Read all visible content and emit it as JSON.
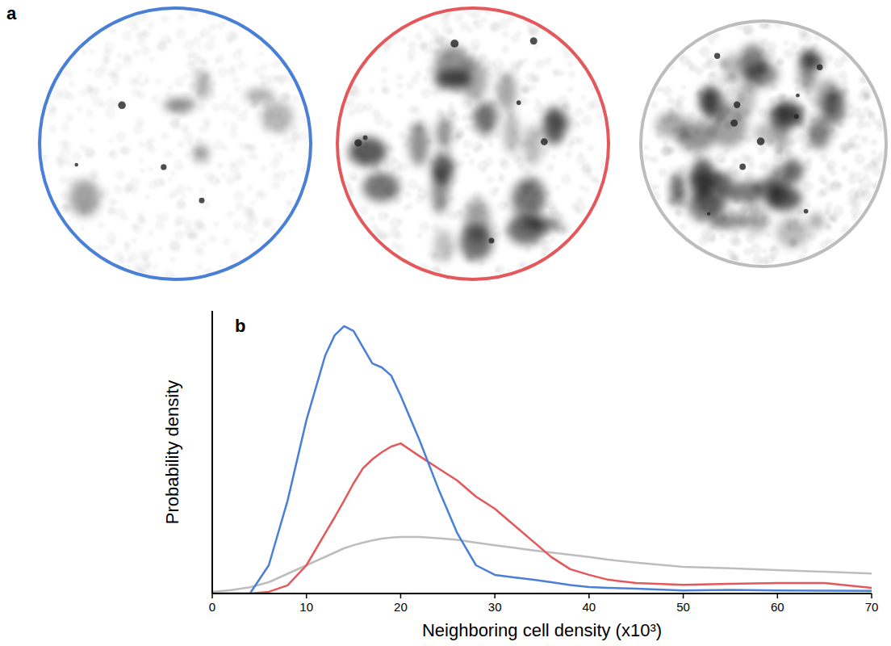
{
  "chart_data": {
    "type": "line",
    "annotations": [
      "a",
      "b"
    ],
    "x_label": "Neighboring cell density (x10³)",
    "y_label": "Probability density",
    "x": [
      0,
      2,
      4,
      6,
      8,
      10,
      12,
      13,
      14,
      15,
      16,
      17,
      18,
      19,
      20,
      22,
      24,
      26,
      28,
      30,
      32,
      34,
      36,
      38,
      40,
      42,
      45,
      50,
      55,
      60,
      65,
      70
    ],
    "series": [
      {
        "color": "#4a7fd8",
        "values": [
          0,
          0,
          0,
          0.1,
          0.329,
          0.614,
          0.843,
          0.914,
          0.946,
          0.929,
          0.871,
          0.814,
          0.8,
          0.771,
          0.7,
          0.543,
          0.371,
          0.214,
          0.1,
          0.066,
          0.057,
          0.049,
          0.04,
          0.03,
          0.023,
          0.02,
          0.017,
          0.011,
          0.013,
          0.011,
          0.01,
          0.009
        ]
      },
      {
        "color": "#e4575a",
        "values": [
          0,
          0,
          0,
          0.006,
          0.029,
          0.1,
          0.214,
          0.27,
          0.329,
          0.39,
          0.443,
          0.475,
          0.5,
          0.52,
          0.531,
          0.486,
          0.443,
          0.4,
          0.343,
          0.3,
          0.243,
          0.186,
          0.129,
          0.086,
          0.066,
          0.049,
          0.037,
          0.031,
          0.034,
          0.037,
          0.037,
          0.02
        ]
      },
      {
        "color": "#bdbdbd",
        "values": [
          0.006,
          0.012,
          0.022,
          0.04,
          0.07,
          0.1,
          0.13,
          0.145,
          0.16,
          0.171,
          0.18,
          0.188,
          0.194,
          0.198,
          0.2,
          0.2,
          0.196,
          0.19,
          0.18,
          0.171,
          0.162,
          0.153,
          0.145,
          0.137,
          0.129,
          0.12,
          0.109,
          0.094,
          0.089,
          0.083,
          0.077,
          0.071
        ]
      }
    ],
    "xlim": [
      0,
      70
    ],
    "xticks": [
      0,
      10,
      20,
      30,
      40,
      50,
      60,
      70
    ],
    "ylim": [
      0,
      1
    ],
    "tick_labels": "x",
    "grid": false
  }
}
